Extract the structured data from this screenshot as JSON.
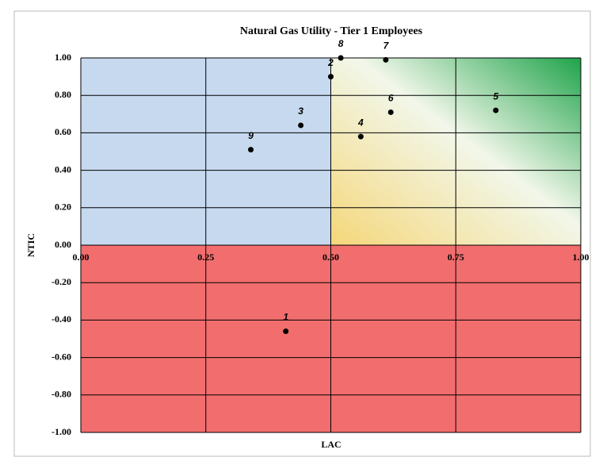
{
  "chart_data": {
    "type": "scatter",
    "title": "Natural Gas Utility - Tier 1 Employees",
    "x_label": "LAC",
    "y_label": "NTIC",
    "x": [
      0.41,
      0.5,
      0.44,
      0.56,
      0.83,
      0.62,
      0.61,
      0.52,
      0.34
    ],
    "values": [
      -0.46,
      0.9,
      0.64,
      0.58,
      0.72,
      0.71,
      0.99,
      1.0,
      0.51
    ],
    "labels": [
      "1",
      "2",
      "3",
      "4",
      "5",
      "6",
      "7",
      "8",
      "9"
    ],
    "color": "#000000",
    "xlim": [
      0,
      1
    ],
    "ylim": [
      -1,
      1
    ],
    "xticks": [
      {
        "value": 0,
        "label": "0.00"
      },
      {
        "value": 0.25,
        "label": "0.25"
      },
      {
        "value": 0.5,
        "label": "0.50"
      },
      {
        "value": 0.75,
        "label": "0.75"
      },
      {
        "value": 1,
        "label": "1.00"
      }
    ],
    "yticks": [
      {
        "value": -1,
        "label": "-1.00"
      },
      {
        "value": -0.8,
        "label": "-0.80"
      },
      {
        "value": -0.6,
        "label": "-0.60"
      },
      {
        "value": -0.4,
        "label": "-0.40"
      },
      {
        "value": -0.2,
        "label": "-0.20"
      },
      {
        "value": 0,
        "label": "0.00"
      },
      {
        "value": 0.2,
        "label": "0.20"
      },
      {
        "value": 0.4,
        "label": "0.40"
      },
      {
        "value": 0.6,
        "label": "0.60"
      },
      {
        "value": 0.8,
        "label": "0.80"
      },
      {
        "value": 1,
        "label": "1.00"
      }
    ],
    "grid": true
  }
}
